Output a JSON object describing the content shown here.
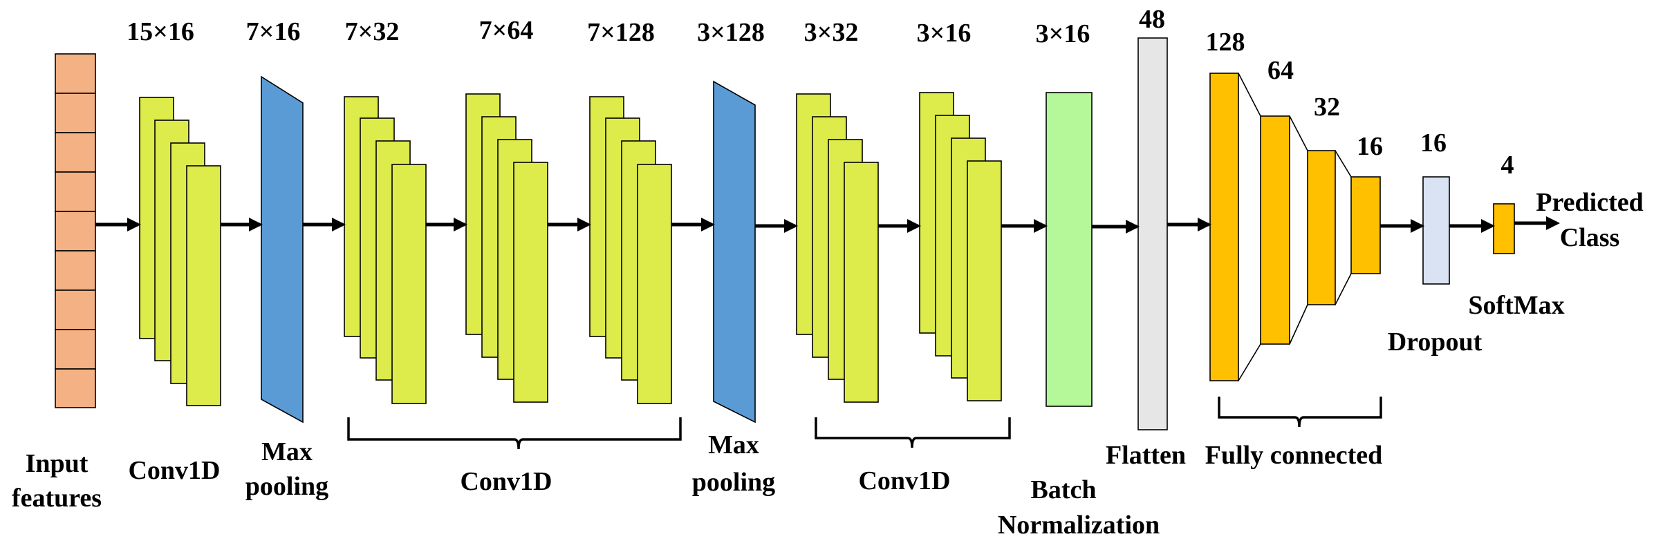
{
  "colors": {
    "input": "#F4B183",
    "conv": "#DDEB4B",
    "pool": "#5B9BD5",
    "batch_norm": "#B4F899",
    "flatten": "#E6E6E6",
    "fully_connected": "#FFC000",
    "dropout": "#DAE3F3",
    "softmax": "#FFC000"
  },
  "dims": {
    "conv1": "15×16",
    "pool1": "7×16",
    "conv2": "7×32",
    "conv3": "7×64",
    "conv4": "7×128",
    "pool2": "3×128",
    "conv5": "3×32",
    "conv6": "3×16",
    "batch_norm": "3×16",
    "flatten": "48",
    "fc1": "128",
    "fc2": "64",
    "fc3": "32",
    "fc4": "16",
    "dropout": "16",
    "softmax": "4"
  },
  "labels": {
    "input_line1": "Input",
    "input_line2": "features",
    "conv1": "Conv1D",
    "pool1_line1": "Max",
    "pool1_line2": "pooling",
    "conv_group1": "Conv1D",
    "pool2_line1": "Max",
    "pool2_line2": "pooling",
    "conv_group2": "Conv1D",
    "batch_norm_line1": "Batch",
    "batch_norm_line2": "Normalization",
    "flatten": "Flatten",
    "fully_connected": "Fully connected",
    "dropout": "Dropout",
    "softmax": "SoftMax",
    "output_line1": "Predicted",
    "output_line2": "Class"
  }
}
